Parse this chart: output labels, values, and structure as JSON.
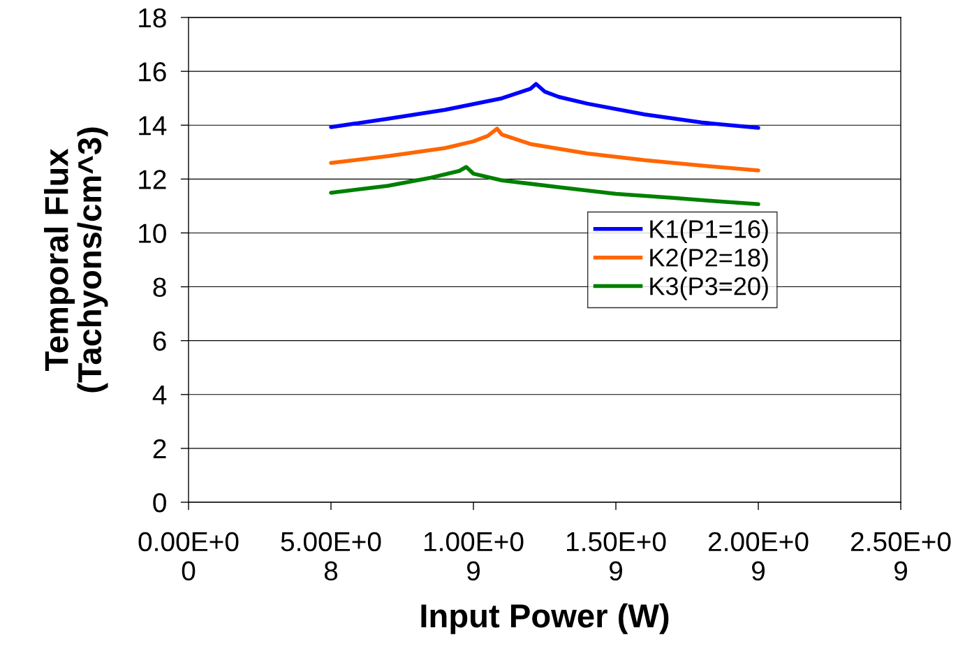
{
  "chart_data": {
    "type": "line",
    "xlabel": "Input Power (W)",
    "ylabel": "Temporal Flux\n(Tachyons/cm^3)",
    "xlim": [
      0,
      2500000000
    ],
    "xticks": [
      {
        "value": 0,
        "label": "0.00E+00"
      },
      {
        "value": 500000000,
        "label": "5.00E+08"
      },
      {
        "value": 1000000000,
        "label": "1.00E+09"
      },
      {
        "value": 1500000000,
        "label": "1.50E+09"
      },
      {
        "value": 2000000000,
        "label": "2.00E+09"
      },
      {
        "value": 2500000000,
        "label": "2.50E+09"
      }
    ],
    "ylim": [
      0,
      18
    ],
    "yticks": [
      0,
      2,
      4,
      6,
      8,
      10,
      12,
      14,
      16,
      18
    ],
    "grid": "y",
    "legend": "center right",
    "marker": "none",
    "line_style": "solid",
    "series": [
      {
        "name": "K1(P1=16)",
        "color": "#0000ff",
        "x": [
          500000000,
          700000000,
          900000000,
          1100000000,
          1200000000,
          1220000000,
          1250000000,
          1300000000,
          1400000000,
          1600000000,
          1800000000,
          2000000000
        ],
        "values": [
          13.93,
          14.24,
          14.57,
          15.0,
          15.35,
          15.53,
          15.25,
          15.05,
          14.8,
          14.4,
          14.1,
          13.9
        ]
      },
      {
        "name": "K2(P2=18)",
        "color": "#ff6600",
        "x": [
          500000000,
          700000000,
          900000000,
          1000000000,
          1050000000,
          1083000000,
          1100000000,
          1200000000,
          1400000000,
          1600000000,
          1800000000,
          2000000000
        ],
        "values": [
          12.6,
          12.85,
          13.15,
          13.4,
          13.6,
          13.87,
          13.65,
          13.3,
          12.95,
          12.7,
          12.5,
          12.32
        ]
      },
      {
        "name": "K3(P3=20)",
        "color": "#008000",
        "x": [
          500000000,
          700000000,
          850000000,
          950000000,
          975000000,
          1000000000,
          1100000000,
          1300000000,
          1500000000,
          1700000000,
          1850000000,
          2000000000
        ],
        "values": [
          11.49,
          11.75,
          12.05,
          12.3,
          12.45,
          12.2,
          11.95,
          11.7,
          11.45,
          11.3,
          11.18,
          11.07
        ]
      }
    ]
  }
}
